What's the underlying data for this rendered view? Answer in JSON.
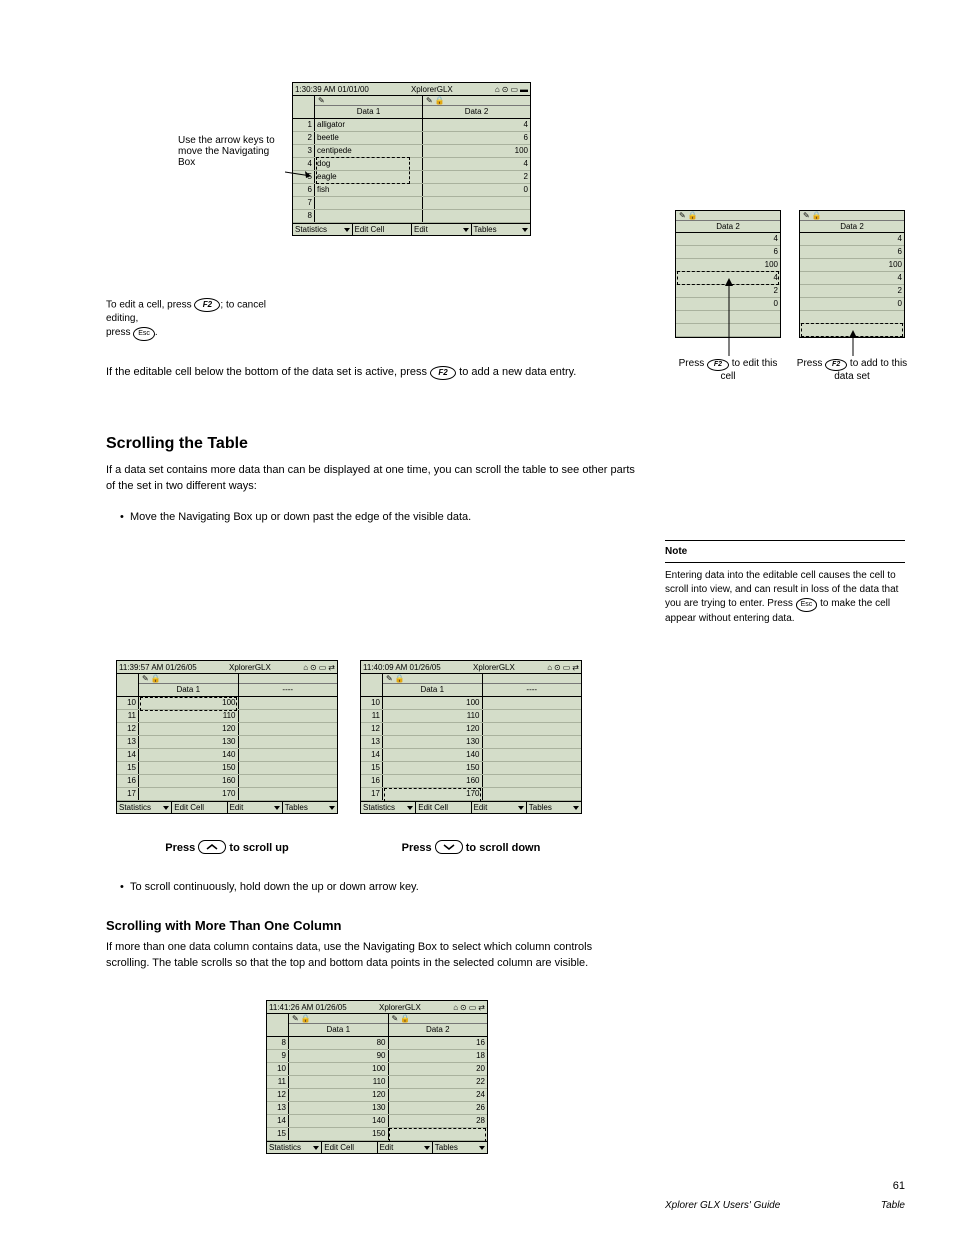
{
  "main_screen": {
    "timestamp": "1:30:39 AM  01/01/00",
    "appname": "XplorerGLX",
    "col1_label": "Data 1",
    "col2_label": "Data 2",
    "rows": [
      {
        "n": "1",
        "c1": "alligator",
        "c2": "4"
      },
      {
        "n": "2",
        "c1": "beetle",
        "c2": "6"
      },
      {
        "n": "3",
        "c1": "centipede",
        "c2": "100"
      },
      {
        "n": "4",
        "c1": "dog",
        "c2": "4"
      },
      {
        "n": "5",
        "c1": "eagle",
        "c2": "2"
      },
      {
        "n": "6",
        "c1": "fish",
        "c2": "0"
      },
      {
        "n": "7",
        "c1": "",
        "c2": ""
      },
      {
        "n": "8",
        "c1": "",
        "c2": ""
      }
    ],
    "softkeys": [
      "Statistics",
      "Edit Cell",
      "Edit",
      "Tables"
    ]
  },
  "annotation_main": "Use the arrow keys to move the Navigating Box",
  "left_text_1": {
    "l1": "To edit a cell, press",
    "l2": "; to cancel editing,",
    "l3": "press",
    "l4": "."
  },
  "middle_text_1": "If the editable cell below the bottom of the data set is active, press      to add a new data entry.",
  "mini_left": {
    "label": "Data 2",
    "values": [
      "4",
      "6",
      "100",
      "4",
      "2",
      "0",
      "",
      ""
    ],
    "caption1": "Press",
    "caption2": "to edit this cell"
  },
  "mini_right": {
    "label": "Data 2",
    "values": [
      "4",
      "6",
      "100",
      "4",
      "2",
      "0",
      "",
      ""
    ],
    "caption1": "Press",
    "caption2": "to add to this data set"
  },
  "heading_scroll": "Scrolling the Table",
  "scroll_para": "If a data set contains more data than can be displayed at one time, you can scroll the table to see other parts of the set in two different ways:",
  "scroll_bullet1": "Move the Navigating Box up or down past the edge of the visible data.",
  "note_title": "Note",
  "note_body": "Entering data into the editable cell causes the cell to scroll into view, and can result in loss of the data that you are trying to enter. Press      to make the cell appear without entering data.",
  "scroll_screen_left": {
    "timestamp": "11:39:57 AM  01/26/05",
    "appname": "XplorerGLX",
    "col1_label": "Data 1",
    "col2_label": "----",
    "rows": [
      {
        "n": "10",
        "v": "100"
      },
      {
        "n": "11",
        "v": "110"
      },
      {
        "n": "12",
        "v": "120"
      },
      {
        "n": "13",
        "v": "130"
      },
      {
        "n": "14",
        "v": "140"
      },
      {
        "n": "15",
        "v": "150"
      },
      {
        "n": "16",
        "v": "160"
      },
      {
        "n": "17",
        "v": "170"
      }
    ],
    "softkeys": [
      "Statistics",
      "Edit Cell",
      "Edit",
      "Tables"
    ],
    "caption_left": "Press",
    "caption_right": "to scroll up"
  },
  "scroll_screen_right": {
    "timestamp": "11:40:09 AM  01/26/05",
    "appname": "XplorerGLX",
    "col1_label": "Data 1",
    "col2_label": "----",
    "rows": [
      {
        "n": "10",
        "v": "100"
      },
      {
        "n": "11",
        "v": "110"
      },
      {
        "n": "12",
        "v": "120"
      },
      {
        "n": "13",
        "v": "130"
      },
      {
        "n": "14",
        "v": "140"
      },
      {
        "n": "15",
        "v": "150"
      },
      {
        "n": "16",
        "v": "160"
      },
      {
        "n": "17",
        "v": "170"
      }
    ],
    "softkeys": [
      "Statistics",
      "Edit Cell",
      "Edit",
      "Tables"
    ],
    "caption_left": "Press",
    "caption_right": "to scroll down"
  },
  "scroll_bullet2": "To scroll continuously, hold down the up or down arrow key.",
  "heading_multi": "Scrolling with More Than One Column",
  "multi_para": "If more than one data column contains data, use the Navigating Box to select which column controls scrolling. The table scrolls so that the top and bottom data points in the selected column are visible.",
  "multi_screen": {
    "timestamp": "11:41:26 AM  01/26/05",
    "appname": "XplorerGLX",
    "col1_label": "Data 1",
    "col2_label": "Data 2",
    "rows": [
      {
        "n": "8",
        "c1": "80",
        "c2": "16"
      },
      {
        "n": "9",
        "c1": "90",
        "c2": "18"
      },
      {
        "n": "10",
        "c1": "100",
        "c2": "20"
      },
      {
        "n": "11",
        "c1": "110",
        "c2": "22"
      },
      {
        "n": "12",
        "c1": "120",
        "c2": "24"
      },
      {
        "n": "13",
        "c1": "130",
        "c2": "26"
      },
      {
        "n": "14",
        "c1": "140",
        "c2": "28"
      },
      {
        "n": "15",
        "c1": "150",
        "c2": ""
      }
    ],
    "softkeys": [
      "Statistics",
      "Edit Cell",
      "Edit",
      "Tables"
    ]
  },
  "footer": {
    "page": "61",
    "line2_left": "Xplorer GLX Users' Guide",
    "line2_right": "Table"
  }
}
